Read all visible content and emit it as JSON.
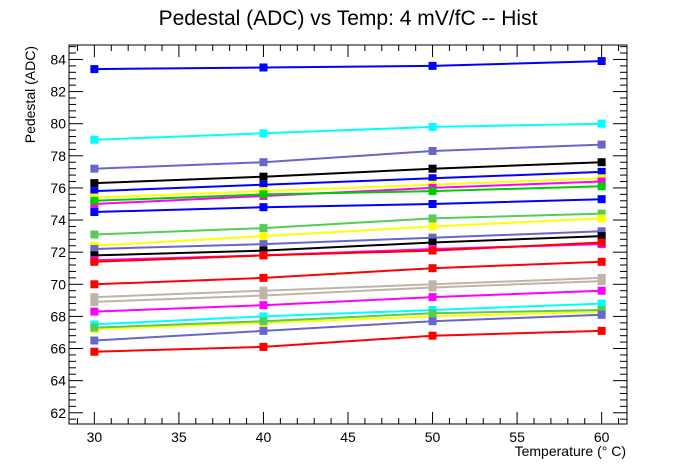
{
  "chart_data": {
    "type": "line",
    "title": "Pedestal (ADC) vs Temp: 4 mV/fC -- Hist",
    "xlabel": "Temperature (° C)",
    "ylabel": "Pedestal (ADC)",
    "xlim": [
      28.5,
      61.5
    ],
    "ylim": [
      61.3,
      84.9
    ],
    "xticks": [
      30,
      35,
      40,
      45,
      50,
      55,
      60
    ],
    "yticks": [
      62,
      64,
      66,
      68,
      70,
      72,
      74,
      76,
      78,
      80,
      82,
      84
    ],
    "grid": false,
    "x": [
      30,
      40,
      50,
      60
    ],
    "series": [
      {
        "color": "#0000ff",
        "values": [
          83.4,
          83.5,
          83.6,
          83.9
        ]
      },
      {
        "color": "#00ffff",
        "values": [
          79.0,
          79.4,
          79.8,
          80.0
        ]
      },
      {
        "color": "#6666cc",
        "values": [
          77.2,
          77.6,
          78.3,
          78.7
        ]
      },
      {
        "color": "#000000",
        "values": [
          76.3,
          76.7,
          77.2,
          77.6
        ]
      },
      {
        "color": "#0000ff",
        "values": [
          75.8,
          76.2,
          76.6,
          77.0
        ]
      },
      {
        "color": "#ffff00",
        "values": [
          75.4,
          75.8,
          76.2,
          76.6
        ]
      },
      {
        "color": "#ff00ff",
        "values": [
          75.0,
          75.5,
          76.0,
          76.4
        ]
      },
      {
        "color": "#00cc00",
        "values": [
          75.2,
          75.6,
          75.8,
          76.1
        ]
      },
      {
        "color": "#0000ff",
        "values": [
          74.5,
          74.8,
          75.0,
          75.3
        ]
      },
      {
        "color": "#55cc55",
        "values": [
          73.1,
          73.5,
          74.1,
          74.4
        ]
      },
      {
        "color": "#ffff00",
        "values": [
          72.4,
          73.0,
          73.6,
          74.1
        ]
      },
      {
        "color": "#6666cc",
        "values": [
          72.2,
          72.5,
          72.9,
          73.3
        ]
      },
      {
        "color": "#000000",
        "values": [
          71.8,
          72.1,
          72.6,
          73.0
        ]
      },
      {
        "color": "#ff00ff",
        "values": [
          71.5,
          71.8,
          72.2,
          72.5
        ]
      },
      {
        "color": "#ff0000",
        "values": [
          71.4,
          71.8,
          72.1,
          72.6
        ]
      },
      {
        "color": "#ff0000",
        "values": [
          70.0,
          70.4,
          71.0,
          71.4
        ]
      },
      {
        "color": "#c0b4a8",
        "values": [
          69.2,
          69.6,
          70.0,
          70.4
        ]
      },
      {
        "color": "#c0b4a8",
        "values": [
          68.9,
          69.3,
          69.8,
          70.2
        ]
      },
      {
        "color": "#ff00ff",
        "values": [
          68.3,
          68.7,
          69.2,
          69.6
        ]
      },
      {
        "color": "#00ffff",
        "values": [
          67.5,
          68.0,
          68.4,
          68.8
        ]
      },
      {
        "color": "#ffff00",
        "values": [
          67.2,
          67.6,
          68.0,
          68.3
        ]
      },
      {
        "color": "#55cc55",
        "values": [
          67.3,
          67.7,
          68.2,
          68.4
        ]
      },
      {
        "color": "#6666cc",
        "values": [
          66.5,
          67.1,
          67.7,
          68.1
        ]
      },
      {
        "color": "#ff0000",
        "values": [
          65.8,
          66.1,
          66.8,
          67.1
        ]
      }
    ]
  }
}
